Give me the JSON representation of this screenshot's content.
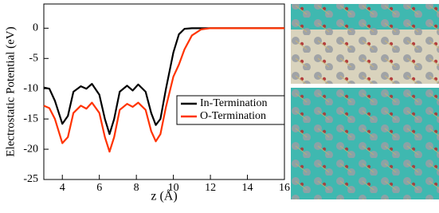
{
  "chart_data": {
    "type": "line",
    "xlabel": "z (Å)",
    "ylabel": "Electrostatic Potential (eV)",
    "x": [
      3,
      3.3,
      3.6,
      4,
      4.3,
      4.6,
      5,
      5.3,
      5.6,
      6,
      6.3,
      6.55,
      6.8,
      7.1,
      7.5,
      7.8,
      8.1,
      8.5,
      8.8,
      9.05,
      9.3,
      9.6,
      10,
      10.3,
      10.6,
      11,
      11.5,
      12,
      16
    ],
    "series": [
      {
        "name": "In-Termination",
        "color": "#000000",
        "values": [
          -9.8,
          -10,
          -12,
          -15.8,
          -14.5,
          -10.5,
          -9.6,
          -10,
          -9.2,
          -11,
          -15,
          -17.5,
          -15,
          -10.5,
          -9.5,
          -10.3,
          -9.3,
          -10.5,
          -14,
          -16,
          -15,
          -10,
          -4,
          -1,
          -0.1,
          0,
          0,
          0,
          0
        ]
      },
      {
        "name": "O-Termination",
        "color": "#ff3300",
        "values": [
          -12.8,
          -13.2,
          -15,
          -19,
          -18,
          -14,
          -12.8,
          -13.3,
          -12.3,
          -14,
          -18,
          -20.4,
          -18,
          -13.5,
          -12.5,
          -13,
          -12.3,
          -13.5,
          -17,
          -18.7,
          -17.5,
          -13,
          -8,
          -6,
          -3.5,
          -1.2,
          -0.2,
          0,
          0
        ]
      }
    ],
    "xlim": [
      3,
      16
    ],
    "xticks": [
      4,
      6,
      8,
      10,
      12,
      14,
      16
    ],
    "ylim": [
      -25,
      4
    ],
    "yticks": [
      0,
      -5,
      -10,
      -15,
      -20,
      -25
    ],
    "legend": "right"
  }
}
